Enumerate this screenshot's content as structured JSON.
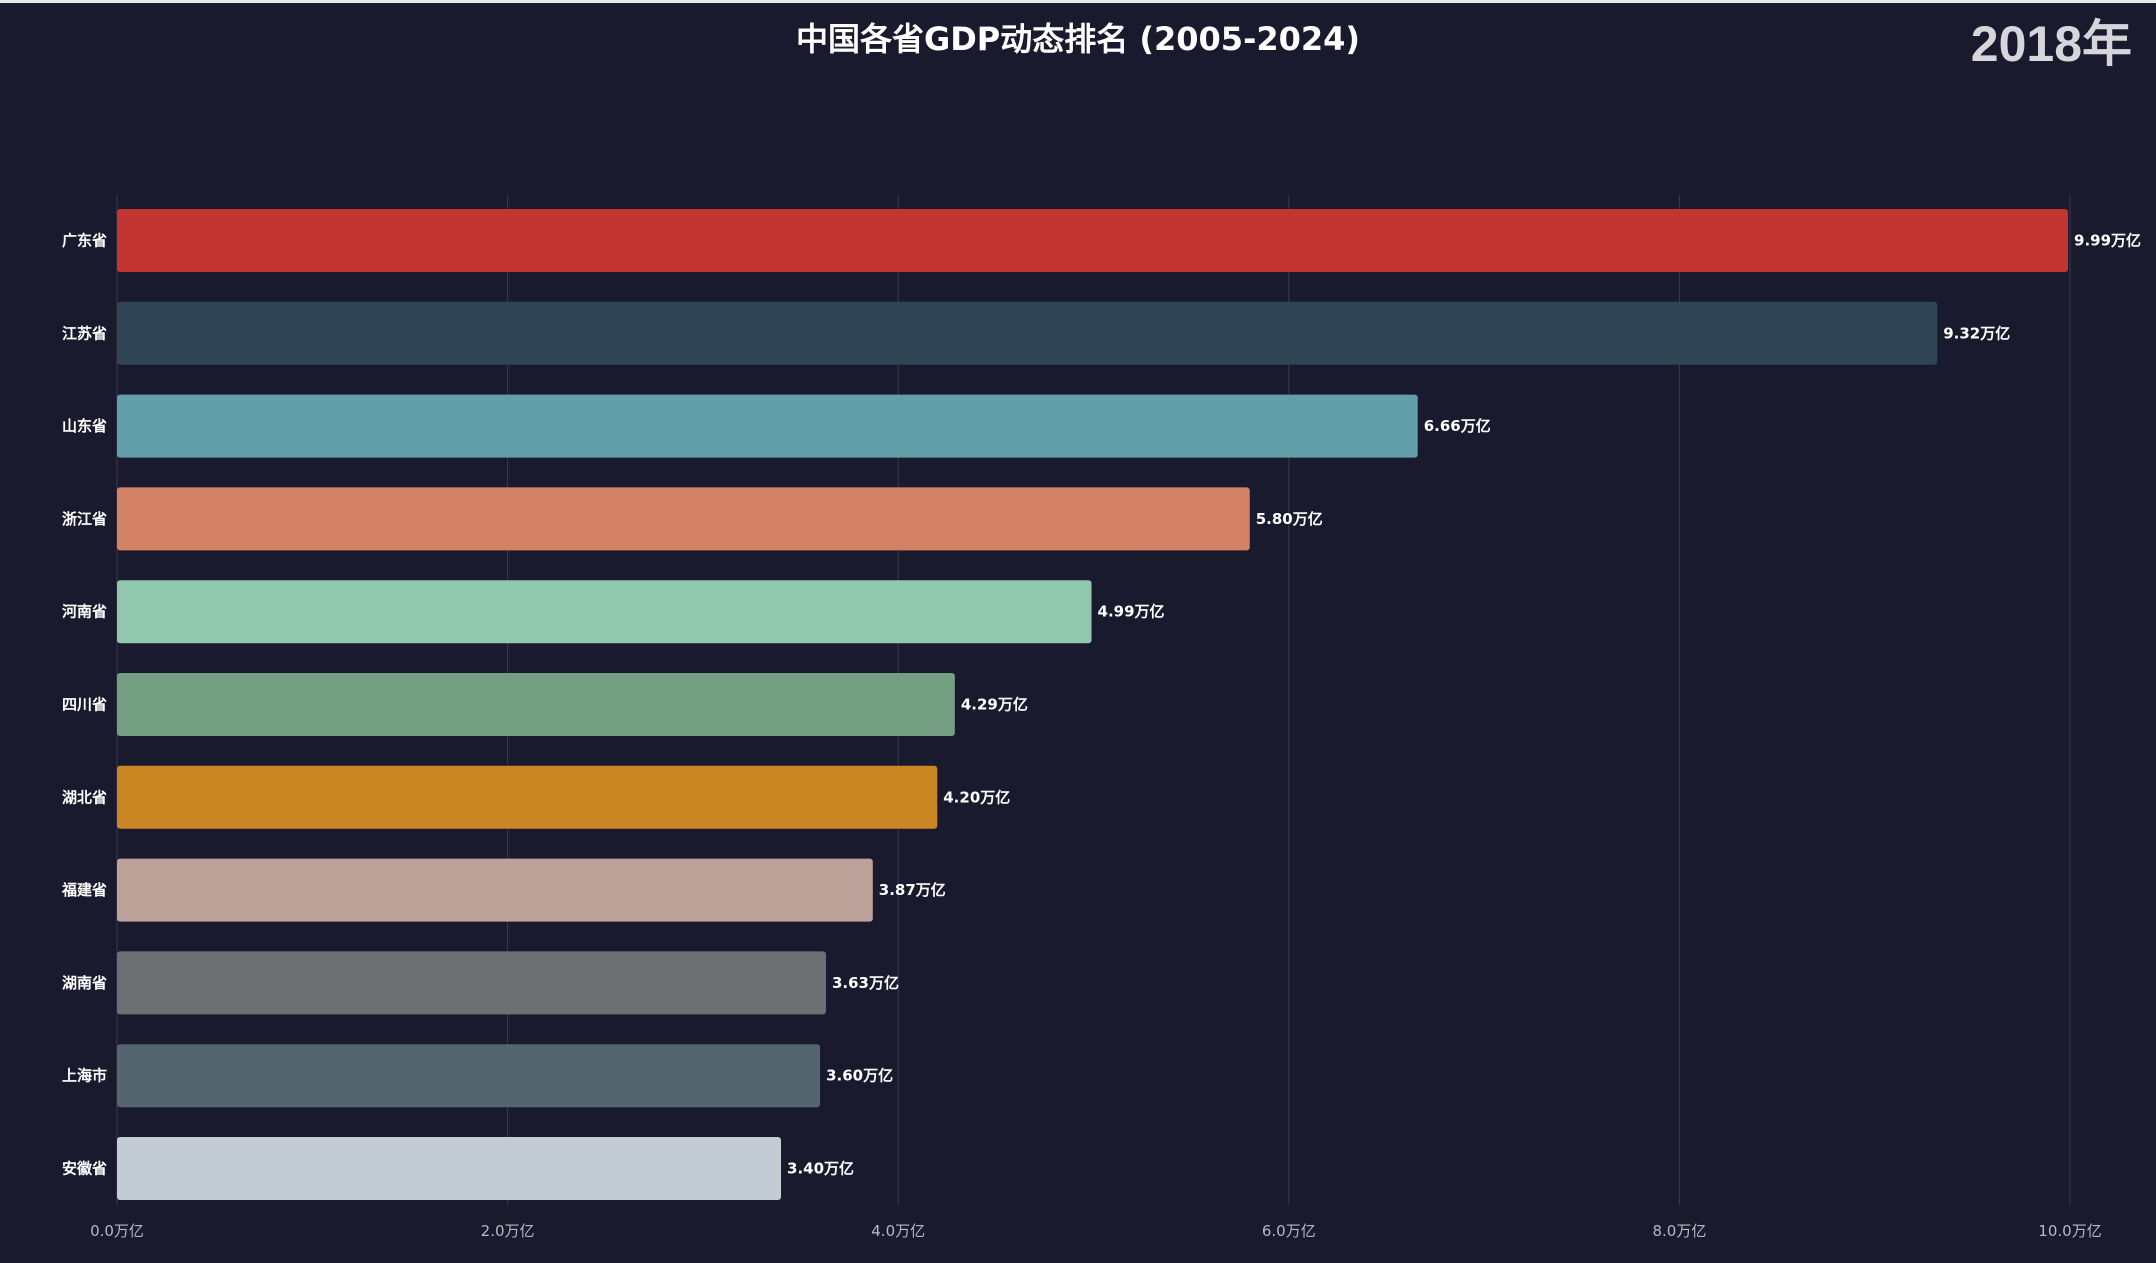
{
  "chart_data": {
    "type": "bar",
    "orientation": "horizontal",
    "title": "中国各省GDP动态排名 (2005-2024)",
    "year_label": "2018年",
    "unit_suffix": "万亿",
    "categories": [
      "广东省",
      "江苏省",
      "山东省",
      "浙江省",
      "河南省",
      "四川省",
      "湖北省",
      "福建省",
      "湖南省",
      "上海市",
      "安徽省"
    ],
    "values": [
      9.99,
      9.32,
      6.66,
      5.8,
      4.99,
      4.29,
      4.2,
      3.87,
      3.63,
      3.6,
      3.4
    ],
    "value_labels": [
      "9.99万亿",
      "9.32万亿",
      "6.66万亿",
      "5.80万亿",
      "4.99万亿",
      "4.29万亿",
      "4.20万亿",
      "3.87万亿",
      "3.63万亿",
      "3.60万亿",
      "3.40万亿"
    ],
    "colors": [
      "#c23531",
      "#2f4554",
      "#61a0a8",
      "#d48265",
      "#91c7ae",
      "#749f83",
      "#ca8622",
      "#bda29a",
      "#6e7074",
      "#546570",
      "#c4ccd3"
    ],
    "xlim": [
      0,
      10
    ],
    "x_ticks": [
      0,
      2,
      4,
      6,
      8,
      10
    ],
    "x_tick_labels": [
      "0.0万亿",
      "2.0万亿",
      "4.0万亿",
      "6.0万亿",
      "8.0万亿",
      "10.0万亿"
    ],
    "grid": true,
    "legend": false
  }
}
